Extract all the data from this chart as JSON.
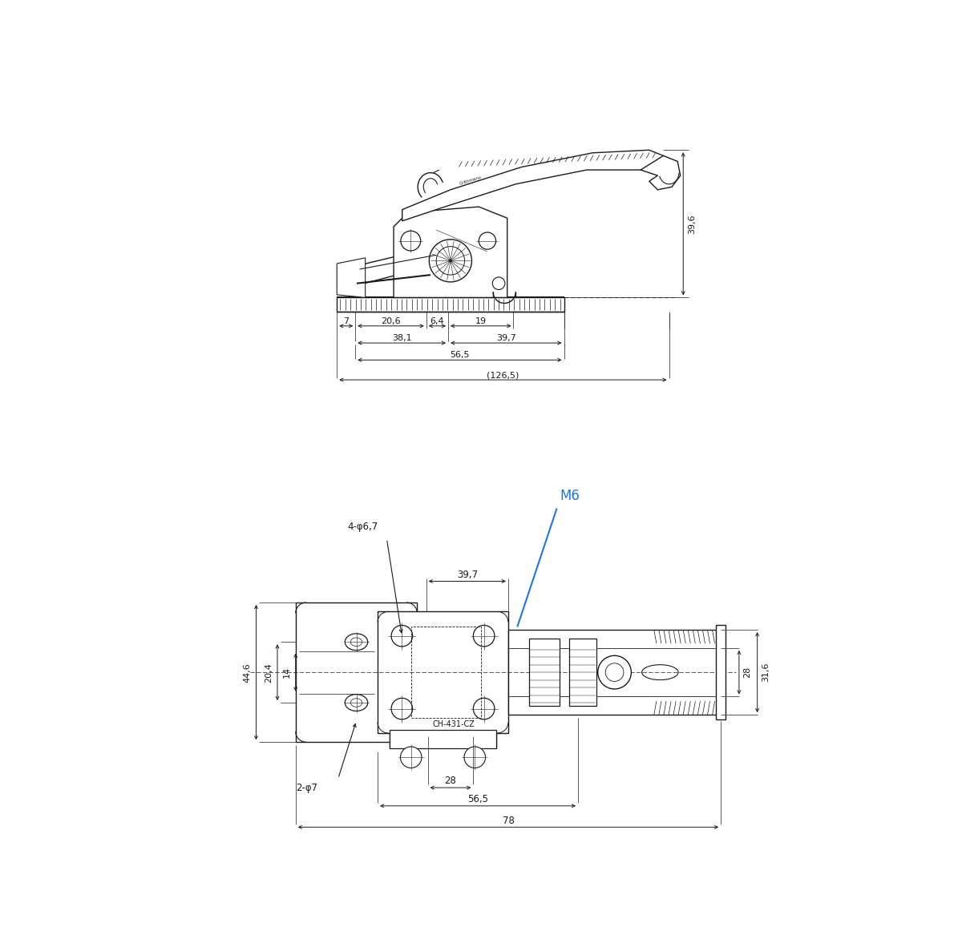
{
  "bg_color": "#ffffff",
  "line_color": "#1a1a1a",
  "dim_color": "#1a1a1a",
  "blue_color": "#2277cc",
  "top_view": {
    "dims": {
      "d7": "7",
      "d20_6": "20,6",
      "d6_4": "6,4",
      "d19": "19",
      "d38_1": "38,1",
      "d39_7": "39,7",
      "d56_5": "56,5",
      "d126_5": "(126,5)",
      "d39_6": "39,6"
    }
  },
  "bottom_view": {
    "dims": {
      "d4_phi6_7": "4-φ6,7",
      "d39_7": "39,7",
      "M6": "M6",
      "d44_6": "44,6",
      "d20_4": "20,4",
      "d14": "14",
      "d2_phi7": "2-φ7",
      "d28_h": "28",
      "d56_5": "56,5",
      "d78": "78",
      "d28_v": "28",
      "d31_6": "31,6",
      "CH_431_CZ": "CH-431-CZ"
    }
  }
}
